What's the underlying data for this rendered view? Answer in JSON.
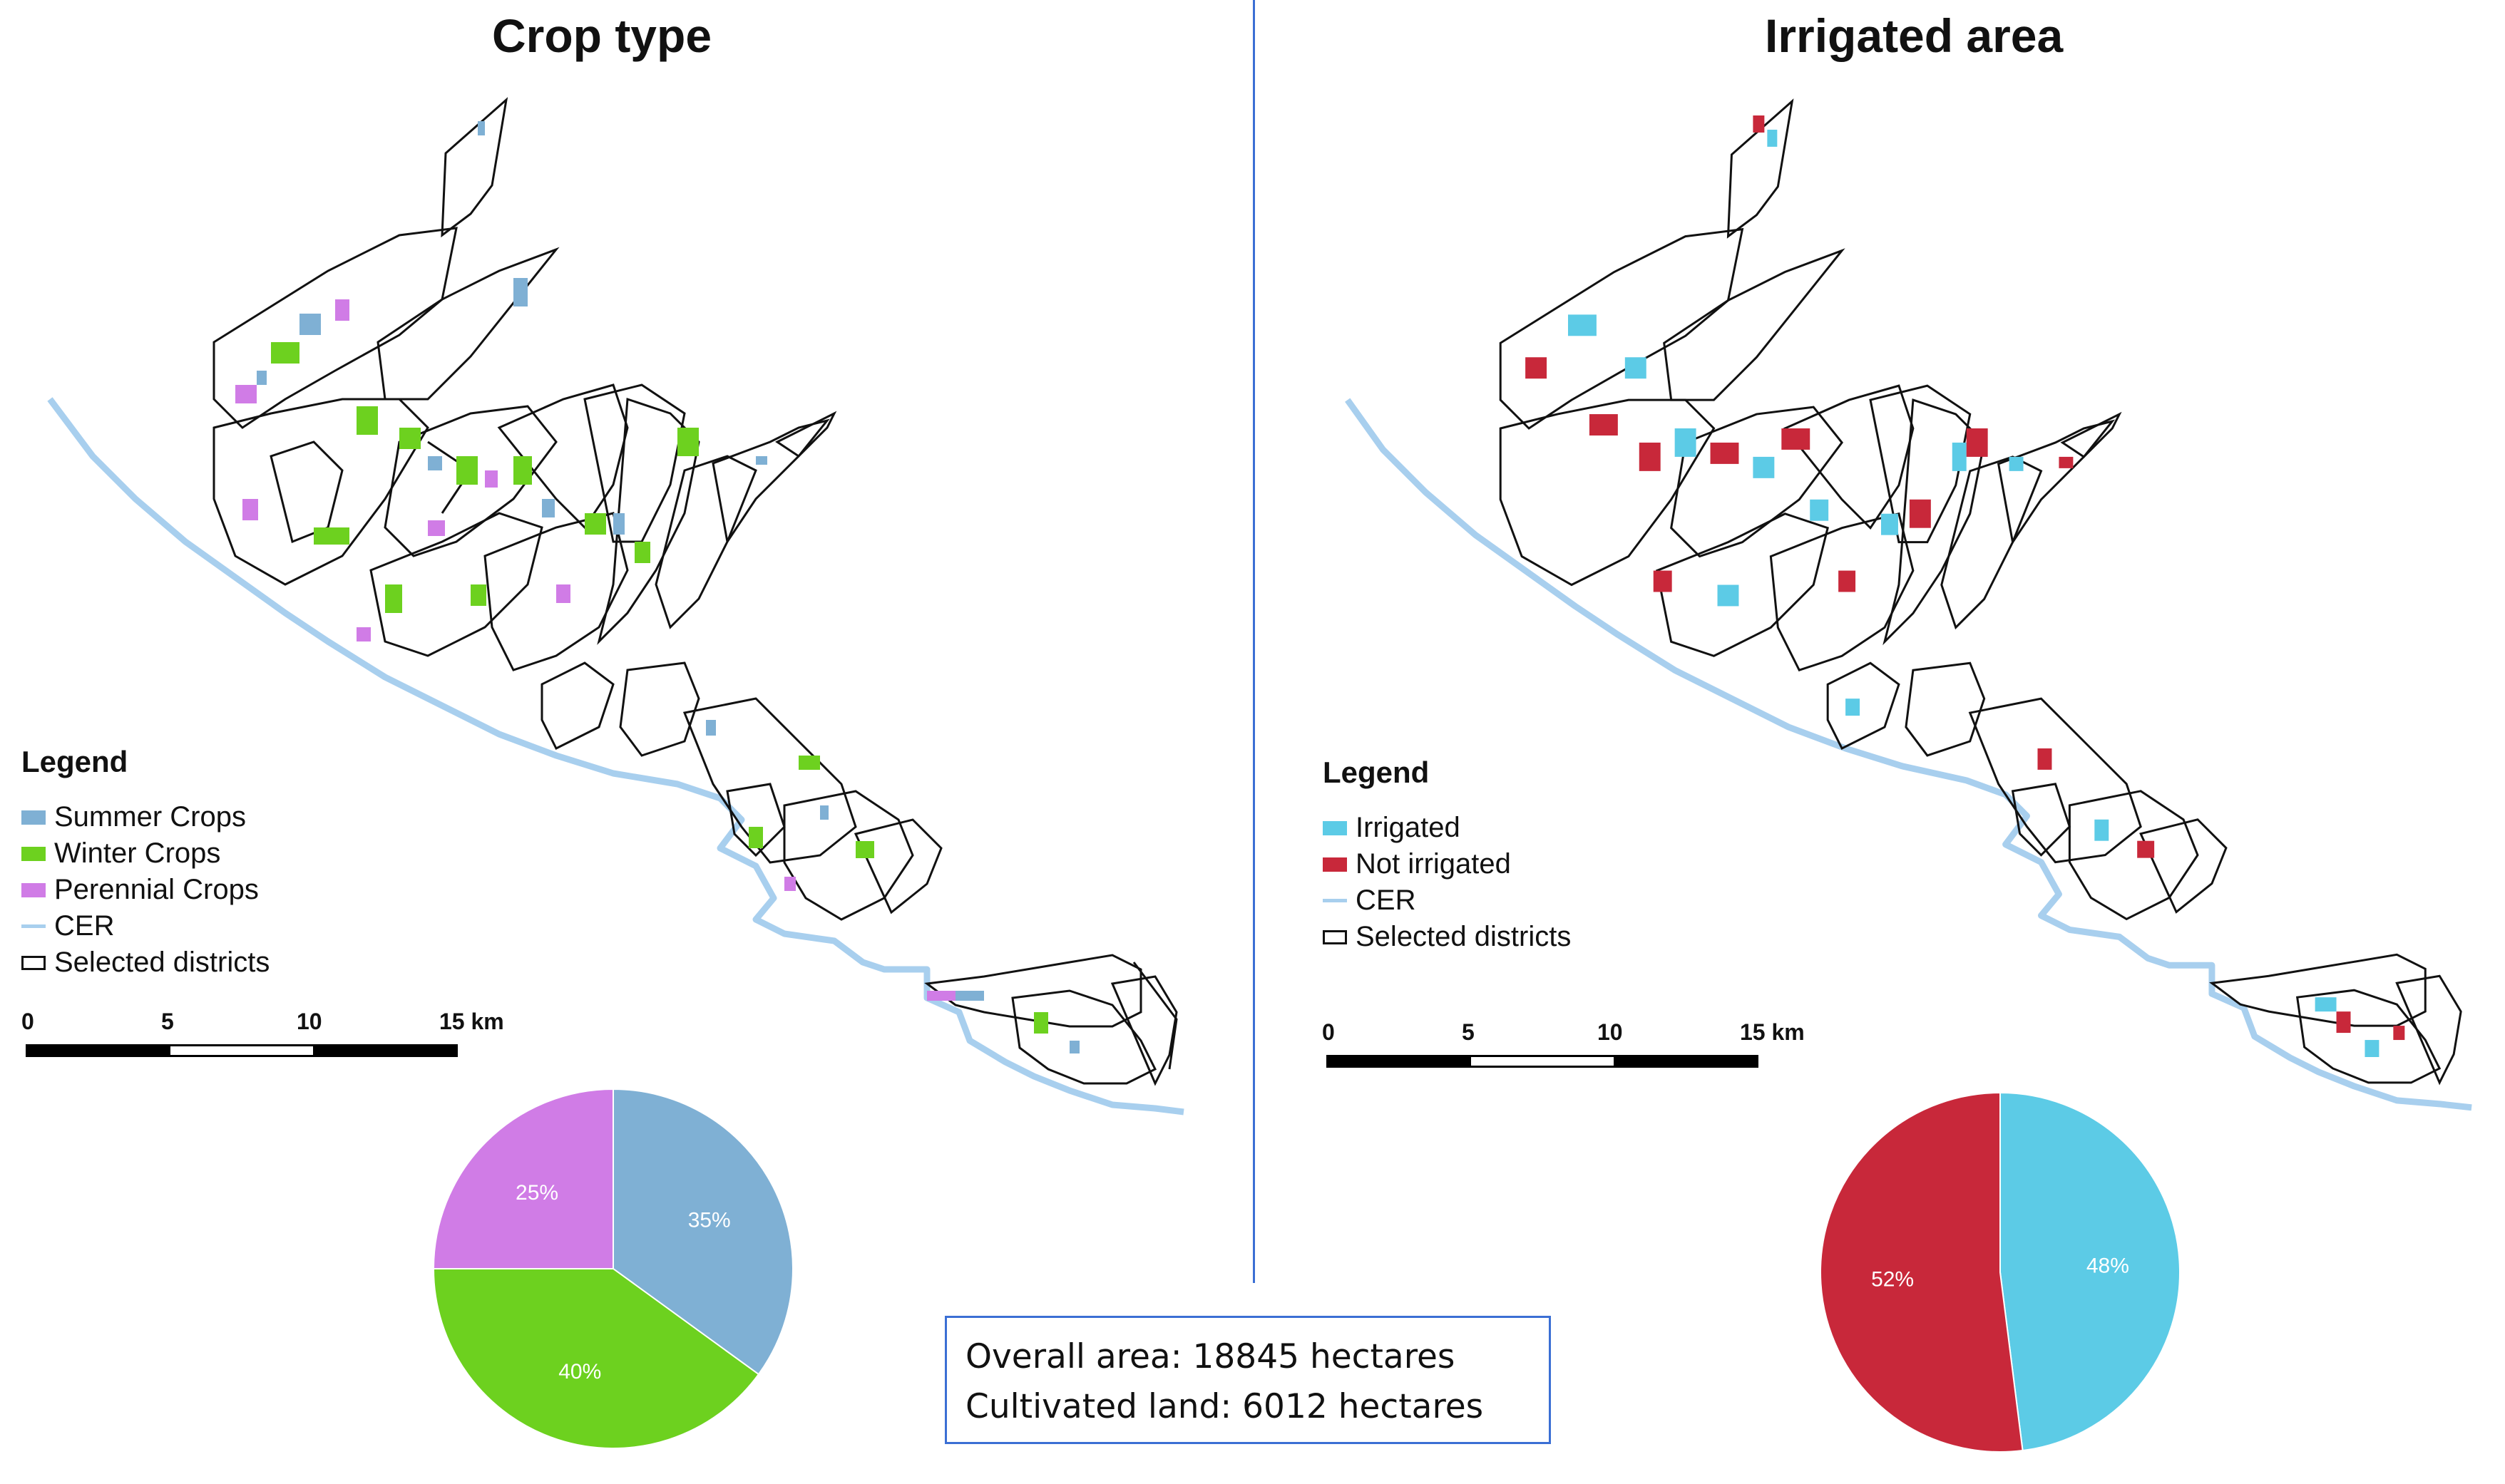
{
  "left_panel": {
    "title": "Crop type",
    "legend": {
      "title": "Legend",
      "items": [
        {
          "label": "Summer Crops",
          "color": "#7fb0d4",
          "kind": "fill"
        },
        {
          "label": "Winter Crops",
          "color": "#6dd11f",
          "kind": "fill"
        },
        {
          "label": "Perennial Crops",
          "color": "#d07ce6",
          "kind": "fill"
        },
        {
          "label": "CER",
          "color": "#a8cfee",
          "kind": "line"
        },
        {
          "label": "Selected districts",
          "color": "#ffffff",
          "kind": "outline"
        }
      ]
    },
    "scale": {
      "ticks": [
        "0",
        "5",
        "10",
        "15 km"
      ]
    },
    "pie": {
      "slices": [
        {
          "label": "35%",
          "value": 35,
          "color": "#7fb0d4"
        },
        {
          "label": "40%",
          "value": 40,
          "color": "#6dd11f"
        },
        {
          "label": "25%",
          "value": 25,
          "color": "#d07ce6"
        }
      ]
    }
  },
  "right_panel": {
    "title": "Irrigated area",
    "legend": {
      "title": "Legend",
      "items": [
        {
          "label": "Irrigated",
          "color": "#5ccbe6",
          "kind": "fill"
        },
        {
          "label": "Not irrigated",
          "color": "#c8283a",
          "kind": "fill"
        },
        {
          "label": "CER",
          "color": "#a8cfee",
          "kind": "line"
        },
        {
          "label": "Selected districts",
          "color": "#ffffff",
          "kind": "outline"
        }
      ]
    },
    "scale": {
      "ticks": [
        "0",
        "5",
        "10",
        "15 km"
      ]
    },
    "pie": {
      "slices": [
        {
          "label": "48%",
          "value": 48,
          "color": "#5ccbe6"
        },
        {
          "label": "52%",
          "value": 52,
          "color": "#c8283a"
        }
      ]
    }
  },
  "summary": {
    "overall": "Overall area: 18845 hectares",
    "cultivated": "Cultivated land: 6012 hectares"
  }
}
